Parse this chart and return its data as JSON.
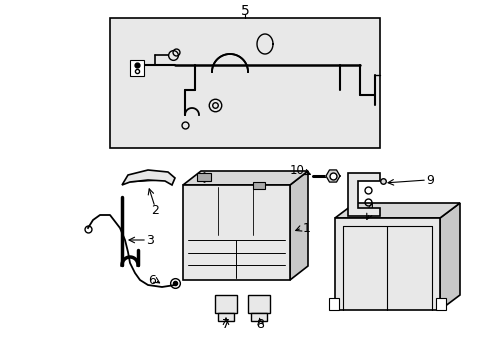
{
  "bg_color": "#ffffff",
  "fig_width": 4.89,
  "fig_height": 3.6,
  "dpi": 100,
  "line_color": "#000000",
  "fill_light": "#e8e8e8",
  "fill_mid": "#d8d8d8",
  "fill_dark": "#c8c8c8"
}
